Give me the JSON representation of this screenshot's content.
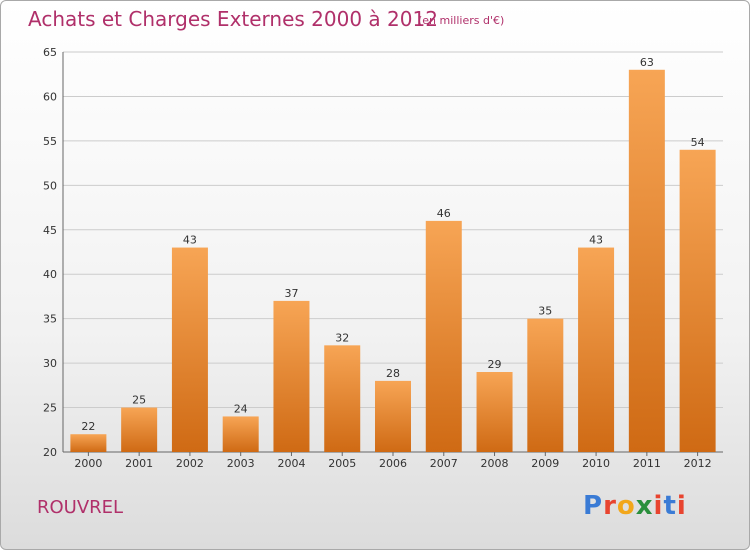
{
  "header": {
    "title": "Achats et Charges Externes 2000 à 2012",
    "subtitle": "(en milliers d'€)"
  },
  "footer": {
    "commune": "ROUVREL",
    "logo_letters": [
      "P",
      "r",
      "o",
      "x",
      "i",
      "t",
      "i"
    ],
    "logo_colors": [
      "#3a7bd5",
      "#e8442f",
      "#f2a71b",
      "#2a8f3c",
      "#e8442f",
      "#3a7bd5",
      "#e8442f"
    ]
  },
  "colors": {
    "bar_top": "#f7a555",
    "bar_bottom": "#cf6a14",
    "grid": "#cccccc",
    "axis": "#666666",
    "text": "#333333"
  },
  "chart_data": {
    "type": "bar",
    "categories": [
      "2000",
      "2001",
      "2002",
      "2003",
      "2004",
      "2005",
      "2006",
      "2007",
      "2008",
      "2009",
      "2010",
      "2011",
      "2012"
    ],
    "values": [
      22,
      25,
      43,
      24,
      37,
      32,
      28,
      46,
      29,
      35,
      43,
      63,
      54
    ],
    "ylim": [
      20,
      65
    ],
    "yticks": [
      20,
      25,
      30,
      35,
      40,
      45,
      50,
      55,
      60,
      65
    ],
    "grid": true,
    "show_value_labels": true
  }
}
